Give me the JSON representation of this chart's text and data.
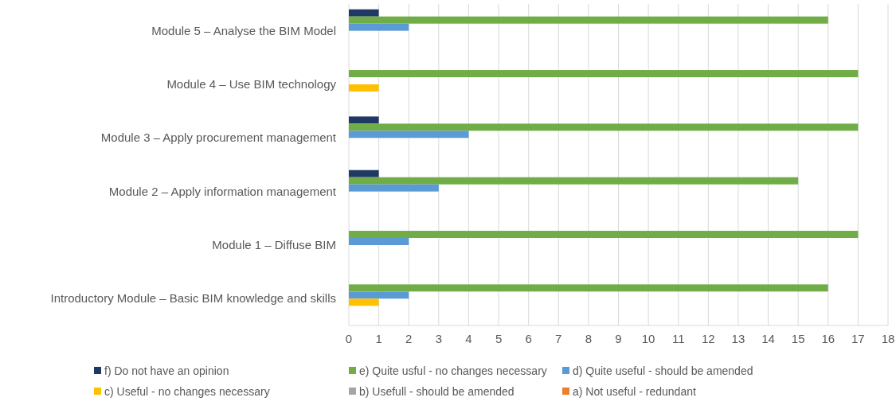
{
  "chart_data": {
    "type": "bar",
    "orientation": "horizontal",
    "categories": [
      "Module 5 – Analyse the BIM Model",
      "Module 4 – Use BIM technology",
      "Module 3 – Apply procurement management",
      "Module 2 – Apply information management",
      "Module 1 – Diffuse BIM",
      "Introductory Module – Basic BIM knowledge and skills"
    ],
    "series": [
      {
        "name": "f) Do not have an opinion",
        "color": "#203864",
        "values": [
          1,
          0,
          1,
          1,
          0,
          0
        ]
      },
      {
        "name": "e) Quite usful - no changes necessary",
        "color": "#70ad47",
        "values": [
          16,
          17,
          17,
          15,
          17,
          16
        ]
      },
      {
        "name": "d) Quite useful - should be amended",
        "color": "#5b9bd5",
        "values": [
          2,
          0,
          4,
          3,
          2,
          2
        ]
      },
      {
        "name": "c) Useful - no changes necessary",
        "color": "#ffc000",
        "values": [
          0,
          1,
          0,
          0,
          0,
          1
        ]
      },
      {
        "name": "b) Usefull - should be amended",
        "color": "#a5a5a5",
        "values": [
          0,
          0,
          0,
          0,
          0,
          0
        ]
      },
      {
        "name": "a) Not useful - redundant",
        "color": "#ed7d31",
        "values": [
          0,
          0,
          0,
          0,
          0,
          0
        ]
      }
    ],
    "xlim": [
      0,
      18
    ],
    "xticks": [
      0,
      1,
      2,
      3,
      4,
      5,
      6,
      7,
      8,
      9,
      10,
      11,
      12,
      13,
      14,
      15,
      16,
      17,
      18
    ],
    "grid": "x",
    "legend": "bottom"
  }
}
